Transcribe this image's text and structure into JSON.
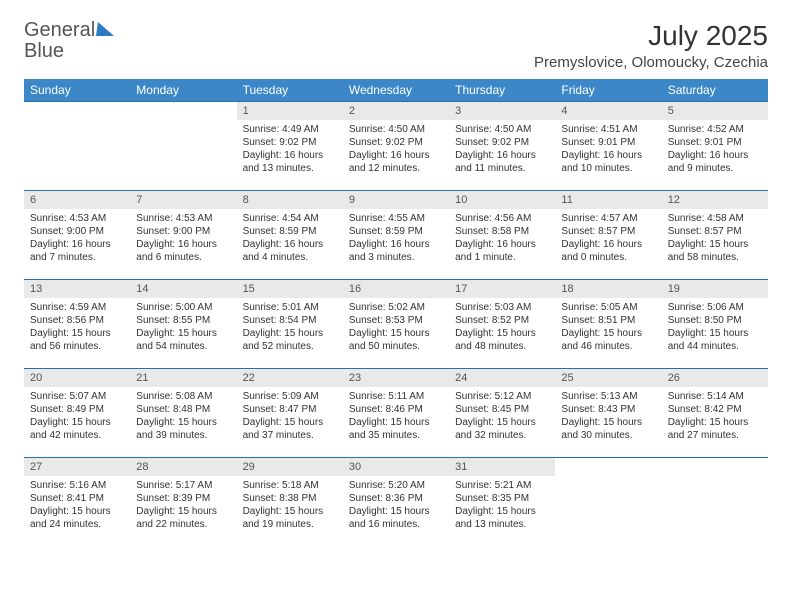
{
  "logo": {
    "word1": "General",
    "word2": "Blue"
  },
  "title": "July 2025",
  "location": "Premyslovice, Olomoucky, Czechia",
  "colors": {
    "header_bg": "#3b87c8",
    "header_text": "#ffffff",
    "week_divider": "#2b6fa8",
    "daynum_bg": "#e9e9e9",
    "logo_blue": "#2b7bc4"
  },
  "day_headers": [
    "Sunday",
    "Monday",
    "Tuesday",
    "Wednesday",
    "Thursday",
    "Friday",
    "Saturday"
  ],
  "weeks": [
    [
      {
        "day": "",
        "sunrise": "",
        "sunset": "",
        "daylight": ""
      },
      {
        "day": "",
        "sunrise": "",
        "sunset": "",
        "daylight": ""
      },
      {
        "day": "1",
        "sunrise": "Sunrise: 4:49 AM",
        "sunset": "Sunset: 9:02 PM",
        "daylight": "Daylight: 16 hours and 13 minutes."
      },
      {
        "day": "2",
        "sunrise": "Sunrise: 4:50 AM",
        "sunset": "Sunset: 9:02 PM",
        "daylight": "Daylight: 16 hours and 12 minutes."
      },
      {
        "day": "3",
        "sunrise": "Sunrise: 4:50 AM",
        "sunset": "Sunset: 9:02 PM",
        "daylight": "Daylight: 16 hours and 11 minutes."
      },
      {
        "day": "4",
        "sunrise": "Sunrise: 4:51 AM",
        "sunset": "Sunset: 9:01 PM",
        "daylight": "Daylight: 16 hours and 10 minutes."
      },
      {
        "day": "5",
        "sunrise": "Sunrise: 4:52 AM",
        "sunset": "Sunset: 9:01 PM",
        "daylight": "Daylight: 16 hours and 9 minutes."
      }
    ],
    [
      {
        "day": "6",
        "sunrise": "Sunrise: 4:53 AM",
        "sunset": "Sunset: 9:00 PM",
        "daylight": "Daylight: 16 hours and 7 minutes."
      },
      {
        "day": "7",
        "sunrise": "Sunrise: 4:53 AM",
        "sunset": "Sunset: 9:00 PM",
        "daylight": "Daylight: 16 hours and 6 minutes."
      },
      {
        "day": "8",
        "sunrise": "Sunrise: 4:54 AM",
        "sunset": "Sunset: 8:59 PM",
        "daylight": "Daylight: 16 hours and 4 minutes."
      },
      {
        "day": "9",
        "sunrise": "Sunrise: 4:55 AM",
        "sunset": "Sunset: 8:59 PM",
        "daylight": "Daylight: 16 hours and 3 minutes."
      },
      {
        "day": "10",
        "sunrise": "Sunrise: 4:56 AM",
        "sunset": "Sunset: 8:58 PM",
        "daylight": "Daylight: 16 hours and 1 minute."
      },
      {
        "day": "11",
        "sunrise": "Sunrise: 4:57 AM",
        "sunset": "Sunset: 8:57 PM",
        "daylight": "Daylight: 16 hours and 0 minutes."
      },
      {
        "day": "12",
        "sunrise": "Sunrise: 4:58 AM",
        "sunset": "Sunset: 8:57 PM",
        "daylight": "Daylight: 15 hours and 58 minutes."
      }
    ],
    [
      {
        "day": "13",
        "sunrise": "Sunrise: 4:59 AM",
        "sunset": "Sunset: 8:56 PM",
        "daylight": "Daylight: 15 hours and 56 minutes."
      },
      {
        "day": "14",
        "sunrise": "Sunrise: 5:00 AM",
        "sunset": "Sunset: 8:55 PM",
        "daylight": "Daylight: 15 hours and 54 minutes."
      },
      {
        "day": "15",
        "sunrise": "Sunrise: 5:01 AM",
        "sunset": "Sunset: 8:54 PM",
        "daylight": "Daylight: 15 hours and 52 minutes."
      },
      {
        "day": "16",
        "sunrise": "Sunrise: 5:02 AM",
        "sunset": "Sunset: 8:53 PM",
        "daylight": "Daylight: 15 hours and 50 minutes."
      },
      {
        "day": "17",
        "sunrise": "Sunrise: 5:03 AM",
        "sunset": "Sunset: 8:52 PM",
        "daylight": "Daylight: 15 hours and 48 minutes."
      },
      {
        "day": "18",
        "sunrise": "Sunrise: 5:05 AM",
        "sunset": "Sunset: 8:51 PM",
        "daylight": "Daylight: 15 hours and 46 minutes."
      },
      {
        "day": "19",
        "sunrise": "Sunrise: 5:06 AM",
        "sunset": "Sunset: 8:50 PM",
        "daylight": "Daylight: 15 hours and 44 minutes."
      }
    ],
    [
      {
        "day": "20",
        "sunrise": "Sunrise: 5:07 AM",
        "sunset": "Sunset: 8:49 PM",
        "daylight": "Daylight: 15 hours and 42 minutes."
      },
      {
        "day": "21",
        "sunrise": "Sunrise: 5:08 AM",
        "sunset": "Sunset: 8:48 PM",
        "daylight": "Daylight: 15 hours and 39 minutes."
      },
      {
        "day": "22",
        "sunrise": "Sunrise: 5:09 AM",
        "sunset": "Sunset: 8:47 PM",
        "daylight": "Daylight: 15 hours and 37 minutes."
      },
      {
        "day": "23",
        "sunrise": "Sunrise: 5:11 AM",
        "sunset": "Sunset: 8:46 PM",
        "daylight": "Daylight: 15 hours and 35 minutes."
      },
      {
        "day": "24",
        "sunrise": "Sunrise: 5:12 AM",
        "sunset": "Sunset: 8:45 PM",
        "daylight": "Daylight: 15 hours and 32 minutes."
      },
      {
        "day": "25",
        "sunrise": "Sunrise: 5:13 AM",
        "sunset": "Sunset: 8:43 PM",
        "daylight": "Daylight: 15 hours and 30 minutes."
      },
      {
        "day": "26",
        "sunrise": "Sunrise: 5:14 AM",
        "sunset": "Sunset: 8:42 PM",
        "daylight": "Daylight: 15 hours and 27 minutes."
      }
    ],
    [
      {
        "day": "27",
        "sunrise": "Sunrise: 5:16 AM",
        "sunset": "Sunset: 8:41 PM",
        "daylight": "Daylight: 15 hours and 24 minutes."
      },
      {
        "day": "28",
        "sunrise": "Sunrise: 5:17 AM",
        "sunset": "Sunset: 8:39 PM",
        "daylight": "Daylight: 15 hours and 22 minutes."
      },
      {
        "day": "29",
        "sunrise": "Sunrise: 5:18 AM",
        "sunset": "Sunset: 8:38 PM",
        "daylight": "Daylight: 15 hours and 19 minutes."
      },
      {
        "day": "30",
        "sunrise": "Sunrise: 5:20 AM",
        "sunset": "Sunset: 8:36 PM",
        "daylight": "Daylight: 15 hours and 16 minutes."
      },
      {
        "day": "31",
        "sunrise": "Sunrise: 5:21 AM",
        "sunset": "Sunset: 8:35 PM",
        "daylight": "Daylight: 15 hours and 13 minutes."
      },
      {
        "day": "",
        "sunrise": "",
        "sunset": "",
        "daylight": ""
      },
      {
        "day": "",
        "sunrise": "",
        "sunset": "",
        "daylight": ""
      }
    ]
  ]
}
